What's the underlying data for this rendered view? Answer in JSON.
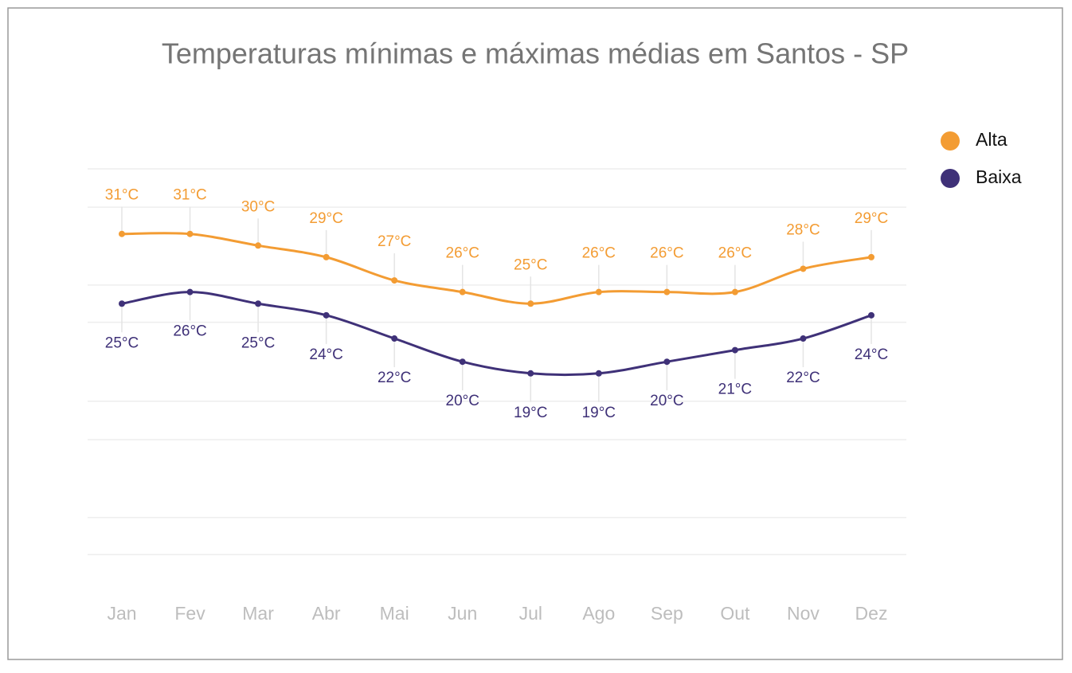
{
  "chart_data": {
    "type": "line",
    "title": "Temperaturas mínimas e máximas médias em Santos - SP",
    "categories": [
      "Jan",
      "Fev",
      "Mar",
      "Abr",
      "Mai",
      "Jun",
      "Jul",
      "Ago",
      "Sep",
      "Out",
      "Nov",
      "Dez"
    ],
    "series": [
      {
        "name": "Alta",
        "color": "#f39c33",
        "values": [
          31,
          31,
          30,
          29,
          27,
          26,
          25,
          26,
          26,
          26,
          28,
          29
        ],
        "value_labels": [
          "31°C",
          "31°C",
          "30°C",
          "29°C",
          "27°C",
          "26°C",
          "25°C",
          "26°C",
          "26°C",
          "26°C",
          "28°C",
          "29°C"
        ]
      },
      {
        "name": "Baixa",
        "color": "#3f3178",
        "values": [
          25,
          26,
          25,
          24,
          22,
          20,
          19,
          19,
          20,
          21,
          22,
          24
        ],
        "value_labels": [
          "25°C",
          "26°C",
          "25°C",
          "24°C",
          "22°C",
          "20°C",
          "19°C",
          "19°C",
          "20°C",
          "21°C",
          "22°C",
          "24°C"
        ]
      }
    ],
    "ylim": [
      0,
      36.6
    ],
    "yticks": [
      3.4,
      6.6,
      13.3,
      16.6,
      23.4,
      26.6,
      33.3,
      36.6
    ],
    "grid": true,
    "legend": "right"
  }
}
